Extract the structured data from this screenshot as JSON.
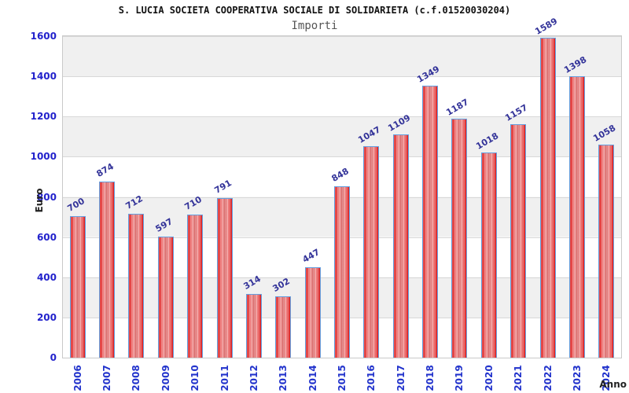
{
  "header": {
    "title": "S. LUCIA SOCIETA COOPERATIVA SOCIALE DI SOLIDARIETA (c.f.01520030204)",
    "subtitle": "Importi"
  },
  "chart_data": {
    "type": "bar",
    "title": "Importi",
    "xlabel": "Anno",
    "ylabel": "Euro",
    "categories": [
      "2006",
      "2007",
      "2008",
      "2009",
      "2010",
      "2011",
      "2012",
      "2013",
      "2014",
      "2015",
      "2016",
      "2017",
      "2018",
      "2019",
      "2020",
      "2021",
      "2022",
      "2023",
      "2024"
    ],
    "values": [
      700,
      874,
      712,
      597,
      710,
      791,
      314,
      302,
      447,
      848,
      1047,
      1109,
      1349,
      1187,
      1018,
      1157,
      1589,
      1398,
      1058
    ],
    "ylim": [
      0,
      1600
    ],
    "yticks": [
      0,
      200,
      400,
      600,
      800,
      1000,
      1200,
      1400,
      1600
    ],
    "grid": true,
    "legend_position": "none",
    "colors": {
      "bar_fill": "#dc1f1f",
      "bar_fill_light": "#f29d9d",
      "bar_border": "#64a0e0",
      "value_label": "#333399",
      "tick_label": "#2222cc",
      "band_gray": "#f0f0f0",
      "band_white": "#ffffff",
      "gridline": "#d8d8d8",
      "title": "#111111",
      "subtitle": "#555555"
    }
  }
}
